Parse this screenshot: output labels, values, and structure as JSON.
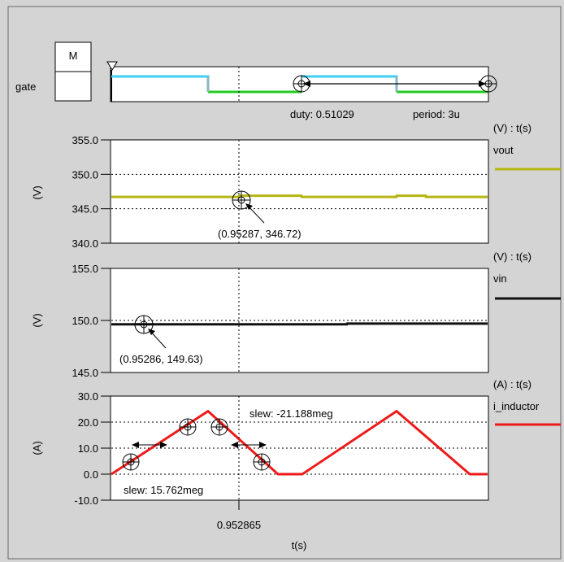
{
  "colors": {
    "background": "#d4d4d4",
    "cyan": "#3ed0f0",
    "green": "#22cc22",
    "olive": "#b5b513",
    "black": "#111111",
    "red": "#ee1a1a"
  },
  "gate": {
    "box_letter": "M",
    "label": "gate",
    "duty_text": "duty: 0.51029",
    "period_text": "period: 3u"
  },
  "time_axis": {
    "label": "t(s)",
    "cursor_label": "0.952865"
  },
  "chart_data": [
    {
      "type": "line",
      "name": "vout",
      "unit_label": "(V) : t(s)",
      "ylabel": "(V)",
      "ylim": [
        340.0,
        355.0
      ],
      "yticks": [
        "355.0",
        "350.0",
        "345.0",
        "340.0"
      ],
      "grid": true,
      "series": [
        {
          "name": "vout",
          "color": "#b5b513",
          "values": [
            346.72,
            346.72,
            346.72,
            346.9,
            346.9,
            346.72,
            346.72,
            346.9,
            346.9,
            346.72,
            346.72
          ]
        }
      ],
      "marker_label": "(0.95287, 346.72)"
    },
    {
      "type": "line",
      "name": "vin",
      "unit_label": "(V) : t(s)",
      "ylabel": "(V)",
      "ylim": [
        145.0,
        155.0
      ],
      "yticks": [
        "155.0",
        "150.0",
        "145.0"
      ],
      "grid": true,
      "series": [
        {
          "name": "vin",
          "color": "#111111",
          "values": [
            149.63,
            149.63,
            149.63,
            149.63,
            149.7,
            149.7
          ]
        }
      ],
      "marker_label": "(0.95286, 149.63)"
    },
    {
      "type": "line",
      "name": "i_inductor",
      "unit_label": "(A) : t(s)",
      "ylabel": "(A)",
      "ylim": [
        -10.0,
        30.0
      ],
      "yticks": [
        "30.0",
        "20.0",
        "10.0",
        "0.0",
        "-10.0"
      ],
      "grid": true,
      "series": [
        {
          "name": "i_inductor",
          "color": "#ee1a1a",
          "values": [
            0.0,
            24.2,
            0.0,
            0.0,
            24.2,
            0.0,
            0.0
          ]
        }
      ],
      "slew_rise": "slew: 15.762meg",
      "slew_fall": "slew: -21.188meg"
    }
  ]
}
